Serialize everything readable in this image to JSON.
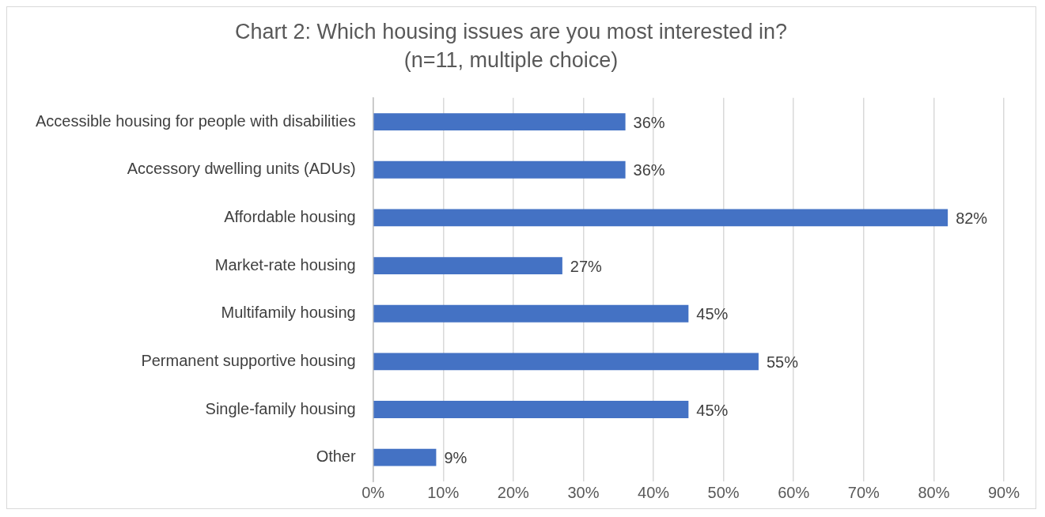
{
  "chart_data": {
    "type": "bar",
    "orientation": "horizontal",
    "title": "Chart 2: Which housing issues are you most interested in?",
    "subtitle": "(n=11, multiple choice)",
    "categories": [
      "Accessible housing for people with disabilities",
      "Accessory dwelling units (ADUs)",
      "Affordable housing",
      "Market-rate housing",
      "Multifamily housing",
      "Permanent supportive housing",
      "Single-family housing",
      "Other"
    ],
    "values": [
      36,
      36,
      82,
      27,
      45,
      55,
      45,
      9
    ],
    "value_labels": [
      "36%",
      "36%",
      "82%",
      "27%",
      "45%",
      "55%",
      "45%",
      "9%"
    ],
    "color": "#4472c4",
    "xlim": [
      0,
      90
    ],
    "xticks": [
      {
        "value": 0,
        "label": "0%"
      },
      {
        "value": 10,
        "label": "10%"
      },
      {
        "value": 20,
        "label": "20%"
      },
      {
        "value": 30,
        "label": "30%"
      },
      {
        "value": 40,
        "label": "40%"
      },
      {
        "value": 50,
        "label": "50%"
      },
      {
        "value": 60,
        "label": "60%"
      },
      {
        "value": 70,
        "label": "70%"
      },
      {
        "value": 80,
        "label": "80%"
      },
      {
        "value": 90,
        "label": "90%"
      }
    ],
    "grid": "x",
    "legend": false
  }
}
